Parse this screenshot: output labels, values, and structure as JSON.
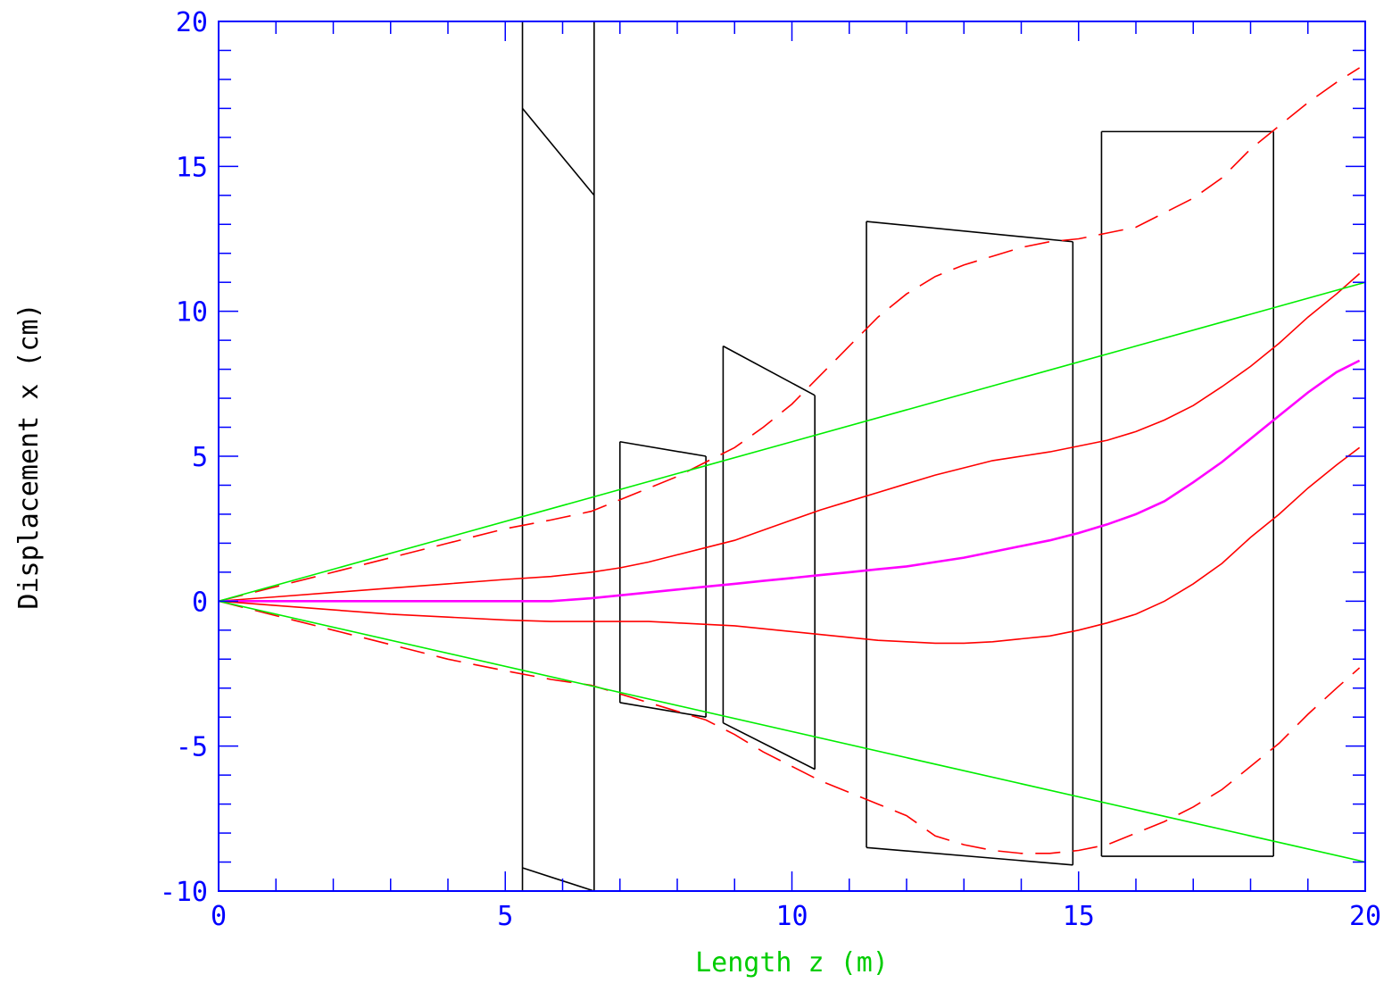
{
  "chart_data": {
    "type": "line",
    "title": "",
    "xlabel": "Length z (m)",
    "ylabel": "Displacement x (cm)",
    "xlim": [
      0,
      20
    ],
    "ylim": [
      -10,
      20
    ],
    "xticks": [
      0,
      5,
      10,
      15,
      20
    ],
    "yticks": [
      -10,
      -5,
      0,
      5,
      10,
      15,
      20
    ],
    "x_minor_step": 1,
    "y_minor_step": 1,
    "grid": false,
    "colors": {
      "axis": "#0000ff",
      "xlabel": "#00cc00",
      "ylabel": "#000000",
      "red": "#ff0000",
      "magenta": "#ff00ff",
      "green": "#00ee00",
      "apertures": "#000000"
    },
    "series": [
      {
        "color": "red",
        "dash": "dashed",
        "x": [
          0,
          1,
          2,
          3,
          4,
          5,
          5.8,
          6.5,
          7,
          7.5,
          8,
          8.5,
          9,
          9.5,
          10,
          10.5,
          11,
          11.5,
          12,
          12.5,
          13,
          13.5,
          14,
          14.5,
          15,
          15.5,
          16,
          16.5,
          17,
          17.5,
          18,
          18.5,
          19,
          19.5,
          19.9
        ],
        "y": [
          0,
          0.5,
          1.0,
          1.5,
          2.0,
          2.5,
          2.8,
          3.1,
          3.5,
          3.9,
          4.3,
          4.8,
          5.3,
          6.0,
          6.8,
          7.8,
          8.8,
          9.8,
          10.6,
          11.2,
          11.6,
          11.9,
          12.2,
          12.4,
          12.5,
          12.7,
          12.9,
          13.4,
          13.9,
          14.6,
          15.6,
          16.4,
          17.2,
          17.9,
          18.4
        ]
      },
      {
        "color": "red",
        "dash": "dashed",
        "x": [
          0,
          1,
          2,
          3,
          4,
          5,
          5.8,
          6.5,
          7,
          7.5,
          8,
          8.5,
          9,
          9.5,
          10,
          10.5,
          11,
          11.5,
          12,
          12.5,
          13,
          13.5,
          14,
          14.5,
          15,
          15.5,
          16,
          16.5,
          17,
          17.5,
          18,
          18.5,
          19,
          19.5,
          19.9
        ],
        "y": [
          0,
          -0.5,
          -1.0,
          -1.5,
          -2.0,
          -2.4,
          -2.7,
          -2.9,
          -3.2,
          -3.5,
          -3.8,
          -4.1,
          -4.6,
          -5.2,
          -5.7,
          -6.2,
          -6.6,
          -7.0,
          -7.4,
          -8.1,
          -8.4,
          -8.6,
          -8.7,
          -8.7,
          -8.6,
          -8.4,
          -8.0,
          -7.6,
          -7.1,
          -6.5,
          -5.7,
          -4.9,
          -3.9,
          -3.0,
          -2.3
        ]
      },
      {
        "color": "red",
        "dash": "solid",
        "x": [
          0,
          1,
          2,
          3,
          4,
          5,
          5.8,
          6.5,
          7,
          7.5,
          8,
          8.5,
          9,
          9.5,
          10,
          10.5,
          11,
          11.5,
          12,
          12.5,
          13,
          13.5,
          14,
          14.5,
          15,
          15.5,
          16,
          16.5,
          17,
          17.5,
          18,
          18.5,
          19,
          19.5,
          19.9
        ],
        "y": [
          0,
          0.15,
          0.3,
          0.45,
          0.6,
          0.75,
          0.85,
          1.0,
          1.15,
          1.35,
          1.6,
          1.85,
          2.1,
          2.45,
          2.8,
          3.15,
          3.45,
          3.75,
          4.05,
          4.35,
          4.6,
          4.85,
          5.0,
          5.15,
          5.35,
          5.55,
          5.85,
          6.25,
          6.75,
          7.4,
          8.1,
          8.9,
          9.8,
          10.6,
          11.3
        ]
      },
      {
        "color": "magenta",
        "dash": "solid",
        "x": [
          0,
          1,
          2,
          3,
          4,
          5,
          5.8,
          6.5,
          7,
          7.5,
          8,
          8.5,
          9,
          9.5,
          10,
          10.5,
          11,
          11.5,
          12,
          12.5,
          13,
          13.5,
          14,
          14.5,
          15,
          15.5,
          16,
          16.5,
          17,
          17.5,
          18,
          18.5,
          19,
          19.5,
          19.9
        ],
        "y": [
          0,
          0,
          0,
          0,
          0,
          0,
          0,
          0.1,
          0.2,
          0.3,
          0.4,
          0.5,
          0.6,
          0.7,
          0.8,
          0.9,
          1.0,
          1.1,
          1.2,
          1.35,
          1.5,
          1.7,
          1.9,
          2.1,
          2.35,
          2.65,
          3.0,
          3.45,
          4.1,
          4.8,
          5.6,
          6.4,
          7.2,
          7.9,
          8.3
        ]
      },
      {
        "color": "red",
        "dash": "solid",
        "x": [
          0,
          1,
          2,
          3,
          4,
          5,
          5.8,
          6.5,
          7,
          7.5,
          8,
          8.5,
          9,
          9.5,
          10,
          10.5,
          11,
          11.5,
          12,
          12.5,
          13,
          13.5,
          14,
          14.5,
          15,
          15.5,
          16,
          16.5,
          17,
          17.5,
          18,
          18.5,
          19,
          19.5,
          19.9
        ],
        "y": [
          0,
          -0.15,
          -0.3,
          -0.45,
          -0.55,
          -0.65,
          -0.7,
          -0.7,
          -0.7,
          -0.7,
          -0.75,
          -0.8,
          -0.85,
          -0.95,
          -1.05,
          -1.15,
          -1.25,
          -1.35,
          -1.4,
          -1.45,
          -1.45,
          -1.4,
          -1.3,
          -1.2,
          -1.0,
          -0.75,
          -0.45,
          0,
          0.6,
          1.3,
          2.2,
          3.0,
          3.9,
          4.7,
          5.3
        ]
      },
      {
        "color": "green",
        "dash": "solid",
        "x": [
          0,
          20
        ],
        "y": [
          0,
          11
        ]
      },
      {
        "color": "green",
        "dash": "solid",
        "x": [
          0,
          20
        ],
        "y": [
          0,
          -9
        ]
      }
    ],
    "apertures": [
      {
        "x0": 5.3,
        "x1": 6.55,
        "top": [
          17,
          14
        ],
        "bottom": [
          -9.2,
          -10
        ],
        "open_top": true,
        "open_bottom": true
      },
      {
        "x0": 7.0,
        "x1": 8.5,
        "top": [
          5.5,
          5.0
        ],
        "bottom": [
          -3.5,
          -4.0
        ]
      },
      {
        "x0": 8.8,
        "x1": 10.4,
        "top": [
          8.8,
          7.1
        ],
        "bottom": [
          -4.2,
          -5.8
        ]
      },
      {
        "x0": 11.3,
        "x1": 14.9,
        "top": [
          13.1,
          12.4
        ],
        "bottom": [
          -8.5,
          -9.1
        ]
      },
      {
        "x0": 15.4,
        "x1": 18.4,
        "top": [
          16.2,
          16.2
        ],
        "bottom": [
          -8.8,
          -8.8
        ]
      }
    ]
  }
}
